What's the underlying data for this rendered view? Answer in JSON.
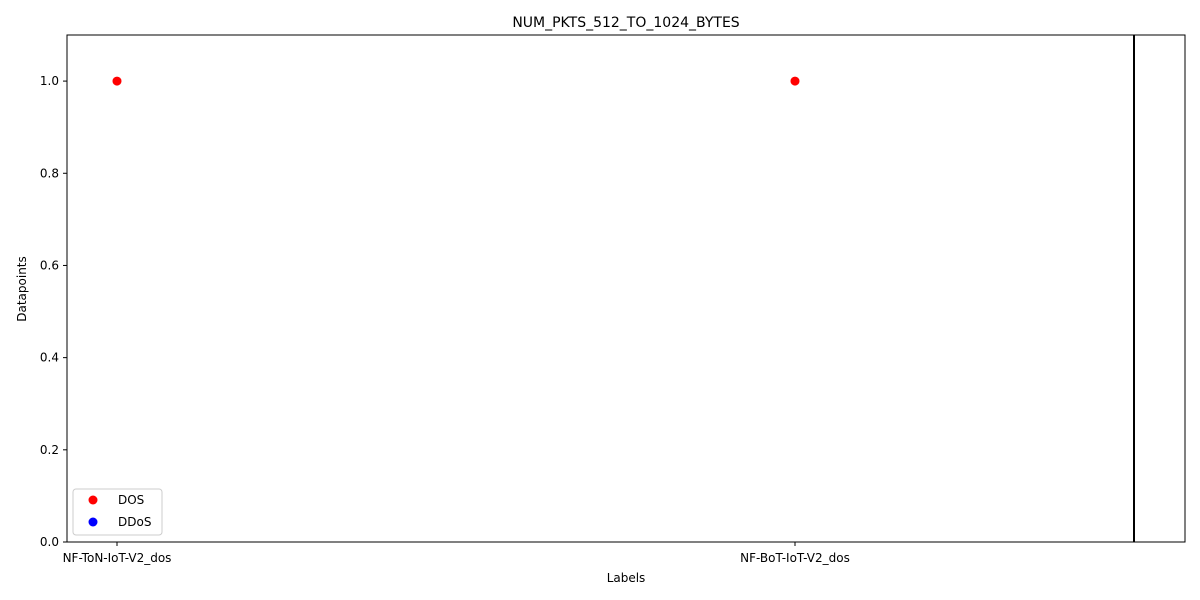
{
  "chart_data": {
    "type": "scatter",
    "title": "NUM_PKTS_512_TO_1024_BYTES",
    "xlabel": "Labels",
    "ylabel": "Datapoints",
    "categories": [
      "NF-ToN-IoT-V2_dos",
      "NF-BoT-IoT-V2_dos"
    ],
    "ylim": [
      0,
      1.1
    ],
    "yticks": [
      "0.0",
      "0.2",
      "0.4",
      "0.6",
      "0.8",
      "1.0"
    ],
    "grid": false,
    "legend_position": "lower-left",
    "vertical_line_at_category_index": 1.5,
    "series": [
      {
        "name": "DOS",
        "color": "#ff0000",
        "points": [
          {
            "x": "NF-ToN-IoT-V2_dos",
            "y": 1.0
          },
          {
            "x": "NF-BoT-IoT-V2_dos",
            "y": 1.0
          }
        ]
      },
      {
        "name": "DDoS",
        "color": "#0000ff",
        "points": []
      }
    ]
  }
}
